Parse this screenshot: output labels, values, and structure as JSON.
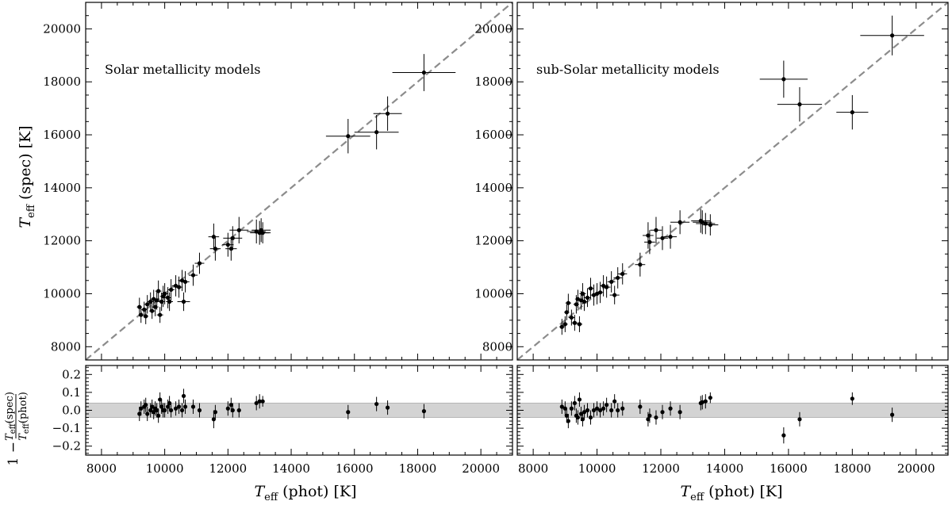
{
  "chart_data": [
    {
      "type": "scatter",
      "panel": "top-left",
      "annotation": "Solar metallicity models",
      "ylabel": "T_eff (spec) [K]",
      "xlim": [
        7500,
        21000
      ],
      "ylim": [
        7500,
        21000
      ],
      "xticks": [
        "8000",
        "10000",
        "12000",
        "14000",
        "16000",
        "18000",
        "20000"
      ],
      "yticks": [
        "8000",
        "10000",
        "12000",
        "14000",
        "16000",
        "18000",
        "20000"
      ],
      "reference_line": "y = x (dashed)",
      "points": [
        {
          "x": 9200,
          "y": 9500,
          "xerr": 80,
          "yerr": 350
        },
        {
          "x": 9250,
          "y": 9200,
          "xerr": 80,
          "yerr": 300
        },
        {
          "x": 9350,
          "y": 9400,
          "xerr": 80,
          "yerr": 300
        },
        {
          "x": 9400,
          "y": 9150,
          "xerr": 80,
          "yerr": 300
        },
        {
          "x": 9450,
          "y": 9600,
          "xerr": 90,
          "yerr": 350
        },
        {
          "x": 9550,
          "y": 9700,
          "xerr": 90,
          "yerr": 350
        },
        {
          "x": 9600,
          "y": 9350,
          "xerr": 90,
          "yerr": 300
        },
        {
          "x": 9650,
          "y": 9800,
          "xerr": 100,
          "yerr": 350
        },
        {
          "x": 9700,
          "y": 9500,
          "xerr": 100,
          "yerr": 350
        },
        {
          "x": 9750,
          "y": 9750,
          "xerr": 100,
          "yerr": 350
        },
        {
          "x": 9800,
          "y": 10100,
          "xerr": 100,
          "yerr": 400
        },
        {
          "x": 9850,
          "y": 9200,
          "xerr": 100,
          "yerr": 300
        },
        {
          "x": 9900,
          "y": 9700,
          "xerr": 100,
          "yerr": 350
        },
        {
          "x": 9950,
          "y": 9900,
          "xerr": 100,
          "yerr": 400
        },
        {
          "x": 10000,
          "y": 10000,
          "xerr": 110,
          "yerr": 400
        },
        {
          "x": 10100,
          "y": 9850,
          "xerr": 110,
          "yerr": 400
        },
        {
          "x": 10150,
          "y": 9700,
          "xerr": 110,
          "yerr": 350
        },
        {
          "x": 10200,
          "y": 10150,
          "xerr": 110,
          "yerr": 400
        },
        {
          "x": 10350,
          "y": 10300,
          "xerr": 120,
          "yerr": 400
        },
        {
          "x": 10450,
          "y": 10250,
          "xerr": 120,
          "yerr": 400
        },
        {
          "x": 10550,
          "y": 10500,
          "xerr": 130,
          "yerr": 400
        },
        {
          "x": 10600,
          "y": 9700,
          "xerr": 200,
          "yerr": 350
        },
        {
          "x": 10650,
          "y": 10450,
          "xerr": 130,
          "yerr": 400
        },
        {
          "x": 10900,
          "y": 10700,
          "xerr": 140,
          "yerr": 400
        },
        {
          "x": 11100,
          "y": 11150,
          "xerr": 150,
          "yerr": 400
        },
        {
          "x": 11550,
          "y": 12150,
          "xerr": 170,
          "yerr": 500
        },
        {
          "x": 11600,
          "y": 11700,
          "xerr": 170,
          "yerr": 450
        },
        {
          "x": 12000,
          "y": 11850,
          "xerr": 180,
          "yerr": 450
        },
        {
          "x": 12100,
          "y": 11700,
          "xerr": 180,
          "yerr": 450
        },
        {
          "x": 12150,
          "y": 12100,
          "xerr": 300,
          "yerr": 450
        },
        {
          "x": 12350,
          "y": 12400,
          "xerr": 300,
          "yerr": 500
        },
        {
          "x": 12900,
          "y": 12350,
          "xerr": 300,
          "yerr": 450
        },
        {
          "x": 13000,
          "y": 12300,
          "xerr": 300,
          "yerr": 450
        },
        {
          "x": 13050,
          "y": 12400,
          "xerr": 300,
          "yerr": 450
        },
        {
          "x": 13100,
          "y": 12300,
          "xerr": 250,
          "yerr": 400
        },
        {
          "x": 15800,
          "y": 15950,
          "xerr": 700,
          "yerr": 650
        },
        {
          "x": 16700,
          "y": 16100,
          "xerr": 700,
          "yerr": 650
        },
        {
          "x": 17050,
          "y": 16800,
          "xerr": 450,
          "yerr": 650
        },
        {
          "x": 18200,
          "y": 18350,
          "xerr": 1000,
          "yerr": 700
        }
      ]
    },
    {
      "type": "scatter",
      "panel": "top-right",
      "annotation": "sub-Solar metallicity models",
      "xlim": [
        7500,
        21000
      ],
      "ylim": [
        7500,
        21000
      ],
      "xticks": [
        "8000",
        "10000",
        "12000",
        "14000",
        "16000",
        "18000",
        "20000"
      ],
      "yticks": [
        "8000",
        "10000",
        "12000",
        "14000",
        "16000",
        "18000",
        "20000"
      ],
      "reference_line": "y = x (dashed)",
      "points": [
        {
          "x": 8900,
          "y": 8750,
          "xerr": 80,
          "yerr": 300
        },
        {
          "x": 9000,
          "y": 8850,
          "xerr": 80,
          "yerr": 300
        },
        {
          "x": 9050,
          "y": 9300,
          "xerr": 80,
          "yerr": 300
        },
        {
          "x": 9100,
          "y": 9650,
          "xerr": 90,
          "yerr": 350
        },
        {
          "x": 9200,
          "y": 9100,
          "xerr": 90,
          "yerr": 300
        },
        {
          "x": 9300,
          "y": 8900,
          "xerr": 90,
          "yerr": 300
        },
        {
          "x": 9350,
          "y": 9600,
          "xerr": 90,
          "yerr": 350
        },
        {
          "x": 9400,
          "y": 9800,
          "xerr": 90,
          "yerr": 350
        },
        {
          "x": 9450,
          "y": 8850,
          "xerr": 90,
          "yerr": 300
        },
        {
          "x": 9500,
          "y": 9750,
          "xerr": 100,
          "yerr": 350
        },
        {
          "x": 9550,
          "y": 10000,
          "xerr": 100,
          "yerr": 400
        },
        {
          "x": 9600,
          "y": 9700,
          "xerr": 100,
          "yerr": 350
        },
        {
          "x": 9700,
          "y": 9850,
          "xerr": 100,
          "yerr": 350
        },
        {
          "x": 9800,
          "y": 10200,
          "xerr": 100,
          "yerr": 400
        },
        {
          "x": 9900,
          "y": 9950,
          "xerr": 100,
          "yerr": 400
        },
        {
          "x": 10000,
          "y": 10000,
          "xerr": 110,
          "yerr": 400
        },
        {
          "x": 10100,
          "y": 10050,
          "xerr": 110,
          "yerr": 400
        },
        {
          "x": 10200,
          "y": 10300,
          "xerr": 110,
          "yerr": 400
        },
        {
          "x": 10300,
          "y": 10250,
          "xerr": 120,
          "yerr": 400
        },
        {
          "x": 10450,
          "y": 10450,
          "xerr": 120,
          "yerr": 400
        },
        {
          "x": 10550,
          "y": 9950,
          "xerr": 150,
          "yerr": 350
        },
        {
          "x": 10650,
          "y": 10600,
          "xerr": 130,
          "yerr": 400
        },
        {
          "x": 10800,
          "y": 10750,
          "xerr": 140,
          "yerr": 400
        },
        {
          "x": 11350,
          "y": 11100,
          "xerr": 160,
          "yerr": 450
        },
        {
          "x": 11600,
          "y": 12200,
          "xerr": 170,
          "yerr": 500
        },
        {
          "x": 11650,
          "y": 11950,
          "xerr": 170,
          "yerr": 450
        },
        {
          "x": 11850,
          "y": 12400,
          "xerr": 180,
          "yerr": 500
        },
        {
          "x": 12050,
          "y": 12100,
          "xerr": 180,
          "yerr": 450
        },
        {
          "x": 12300,
          "y": 12150,
          "xerr": 200,
          "yerr": 450
        },
        {
          "x": 12600,
          "y": 12700,
          "xerr": 300,
          "yerr": 450
        },
        {
          "x": 13250,
          "y": 12750,
          "xerr": 300,
          "yerr": 450
        },
        {
          "x": 13300,
          "y": 12700,
          "xerr": 300,
          "yerr": 450
        },
        {
          "x": 13400,
          "y": 12650,
          "xerr": 300,
          "yerr": 400
        },
        {
          "x": 13550,
          "y": 12600,
          "xerr": 250,
          "yerr": 400
        },
        {
          "x": 15850,
          "y": 18100,
          "xerr": 750,
          "yerr": 700
        },
        {
          "x": 16350,
          "y": 17150,
          "xerr": 700,
          "yerr": 650
        },
        {
          "x": 18000,
          "y": 16850,
          "xerr": 500,
          "yerr": 650
        },
        {
          "x": 19250,
          "y": 19750,
          "xerr": 1000,
          "yerr": 750
        }
      ]
    },
    {
      "type": "scatter",
      "panel": "bottom-left",
      "ylabel": "1 − T_eff(spec)/T_eff(phot)",
      "xlabel": "T_eff (phot) [K]",
      "xlim": [
        7500,
        21000
      ],
      "ylim": [
        -0.25,
        0.25
      ],
      "xticks": [
        "8000",
        "10000",
        "12000",
        "14000",
        "16000",
        "18000",
        "20000"
      ],
      "yticks": [
        "0.2",
        "0.1",
        "0.0",
        "−0.1",
        "−0.2"
      ],
      "band": [
        -0.04,
        0.04
      ],
      "points": [
        {
          "x": 9200,
          "y": -0.02,
          "yerr": 0.04
        },
        {
          "x": 9250,
          "y": 0.01,
          "yerr": 0.04
        },
        {
          "x": 9350,
          "y": 0.02,
          "yerr": 0.04
        },
        {
          "x": 9400,
          "y": 0.03,
          "yerr": 0.04
        },
        {
          "x": 9450,
          "y": -0.02,
          "yerr": 0.04
        },
        {
          "x": 9550,
          "y": 0.0,
          "yerr": 0.04
        },
        {
          "x": 9600,
          "y": 0.02,
          "yerr": 0.04
        },
        {
          "x": 9650,
          "y": -0.01,
          "yerr": 0.04
        },
        {
          "x": 9700,
          "y": 0.01,
          "yerr": 0.04
        },
        {
          "x": 9750,
          "y": 0.0,
          "yerr": 0.04
        },
        {
          "x": 9800,
          "y": -0.03,
          "yerr": 0.04
        },
        {
          "x": 9850,
          "y": 0.06,
          "yerr": 0.04
        },
        {
          "x": 9900,
          "y": 0.02,
          "yerr": 0.04
        },
        {
          "x": 9950,
          "y": 0.0,
          "yerr": 0.04
        },
        {
          "x": 10000,
          "y": 0.0,
          "yerr": 0.04
        },
        {
          "x": 10100,
          "y": 0.02,
          "yerr": 0.04
        },
        {
          "x": 10150,
          "y": 0.04,
          "yerr": 0.04
        },
        {
          "x": 10200,
          "y": 0.0,
          "yerr": 0.04
        },
        {
          "x": 10350,
          "y": 0.01,
          "yerr": 0.04
        },
        {
          "x": 10450,
          "y": 0.02,
          "yerr": 0.04
        },
        {
          "x": 10550,
          "y": 0.0,
          "yerr": 0.04
        },
        {
          "x": 10600,
          "y": 0.08,
          "yerr": 0.04
        },
        {
          "x": 10650,
          "y": 0.02,
          "yerr": 0.04
        },
        {
          "x": 10900,
          "y": 0.02,
          "yerr": 0.04
        },
        {
          "x": 11100,
          "y": 0.0,
          "yerr": 0.04
        },
        {
          "x": 11550,
          "y": -0.05,
          "yerr": 0.05
        },
        {
          "x": 11600,
          "y": -0.01,
          "yerr": 0.04
        },
        {
          "x": 12000,
          "y": 0.01,
          "yerr": 0.04
        },
        {
          "x": 12100,
          "y": 0.03,
          "yerr": 0.04
        },
        {
          "x": 12150,
          "y": 0.0,
          "yerr": 0.04
        },
        {
          "x": 12350,
          "y": 0.0,
          "yerr": 0.04
        },
        {
          "x": 12900,
          "y": 0.04,
          "yerr": 0.04
        },
        {
          "x": 13000,
          "y": 0.05,
          "yerr": 0.04
        },
        {
          "x": 13100,
          "y": 0.05,
          "yerr": 0.03
        },
        {
          "x": 15800,
          "y": -0.01,
          "yerr": 0.04
        },
        {
          "x": 16700,
          "y": 0.035,
          "yerr": 0.04
        },
        {
          "x": 17050,
          "y": 0.015,
          "yerr": 0.04
        },
        {
          "x": 18200,
          "y": -0.005,
          "yerr": 0.04
        }
      ]
    },
    {
      "type": "scatter",
      "panel": "bottom-right",
      "xlabel": "T_eff (phot) [K]",
      "xlim": [
        7500,
        21000
      ],
      "ylim": [
        -0.25,
        0.25
      ],
      "xticks": [
        "8000",
        "10000",
        "12000",
        "14000",
        "16000",
        "18000",
        "20000"
      ],
      "band": [
        -0.04,
        0.04
      ],
      "points": [
        {
          "x": 8900,
          "y": 0.02,
          "yerr": 0.04
        },
        {
          "x": 9000,
          "y": 0.01,
          "yerr": 0.04
        },
        {
          "x": 9050,
          "y": -0.03,
          "yerr": 0.04
        },
        {
          "x": 9100,
          "y": -0.06,
          "yerr": 0.04
        },
        {
          "x": 9200,
          "y": 0.01,
          "yerr": 0.04
        },
        {
          "x": 9300,
          "y": 0.04,
          "yerr": 0.04
        },
        {
          "x": 9350,
          "y": -0.03,
          "yerr": 0.04
        },
        {
          "x": 9400,
          "y": -0.04,
          "yerr": 0.04
        },
        {
          "x": 9450,
          "y": 0.06,
          "yerr": 0.04
        },
        {
          "x": 9500,
          "y": -0.02,
          "yerr": 0.04
        },
        {
          "x": 9550,
          "y": -0.05,
          "yerr": 0.04
        },
        {
          "x": 9600,
          "y": -0.01,
          "yerr": 0.04
        },
        {
          "x": 9700,
          "y": 0.0,
          "yerr": 0.04
        },
        {
          "x": 9800,
          "y": -0.04,
          "yerr": 0.04
        },
        {
          "x": 9900,
          "y": 0.0,
          "yerr": 0.04
        },
        {
          "x": 10000,
          "y": 0.01,
          "yerr": 0.04
        },
        {
          "x": 10100,
          "y": 0.0,
          "yerr": 0.04
        },
        {
          "x": 10200,
          "y": 0.01,
          "yerr": 0.04
        },
        {
          "x": 10300,
          "y": 0.03,
          "yerr": 0.04
        },
        {
          "x": 10450,
          "y": 0.0,
          "yerr": 0.04
        },
        {
          "x": 10550,
          "y": 0.05,
          "yerr": 0.04
        },
        {
          "x": 10650,
          "y": 0.0,
          "yerr": 0.04
        },
        {
          "x": 10800,
          "y": 0.01,
          "yerr": 0.04
        },
        {
          "x": 11350,
          "y": 0.02,
          "yerr": 0.04
        },
        {
          "x": 11600,
          "y": -0.05,
          "yerr": 0.04
        },
        {
          "x": 11650,
          "y": -0.03,
          "yerr": 0.04
        },
        {
          "x": 11850,
          "y": -0.04,
          "yerr": 0.04
        },
        {
          "x": 12050,
          "y": -0.01,
          "yerr": 0.04
        },
        {
          "x": 12300,
          "y": 0.01,
          "yerr": 0.04
        },
        {
          "x": 12600,
          "y": -0.01,
          "yerr": 0.04
        },
        {
          "x": 13250,
          "y": 0.04,
          "yerr": 0.04
        },
        {
          "x": 13300,
          "y": 0.045,
          "yerr": 0.04
        },
        {
          "x": 13400,
          "y": 0.05,
          "yerr": 0.04
        },
        {
          "x": 13550,
          "y": 0.07,
          "yerr": 0.03
        },
        {
          "x": 15850,
          "y": -0.14,
          "yerr": 0.045
        },
        {
          "x": 16350,
          "y": -0.05,
          "yerr": 0.04
        },
        {
          "x": 18000,
          "y": 0.065,
          "yerr": 0.035
        },
        {
          "x": 19250,
          "y": -0.025,
          "yerr": 0.04
        }
      ]
    }
  ]
}
